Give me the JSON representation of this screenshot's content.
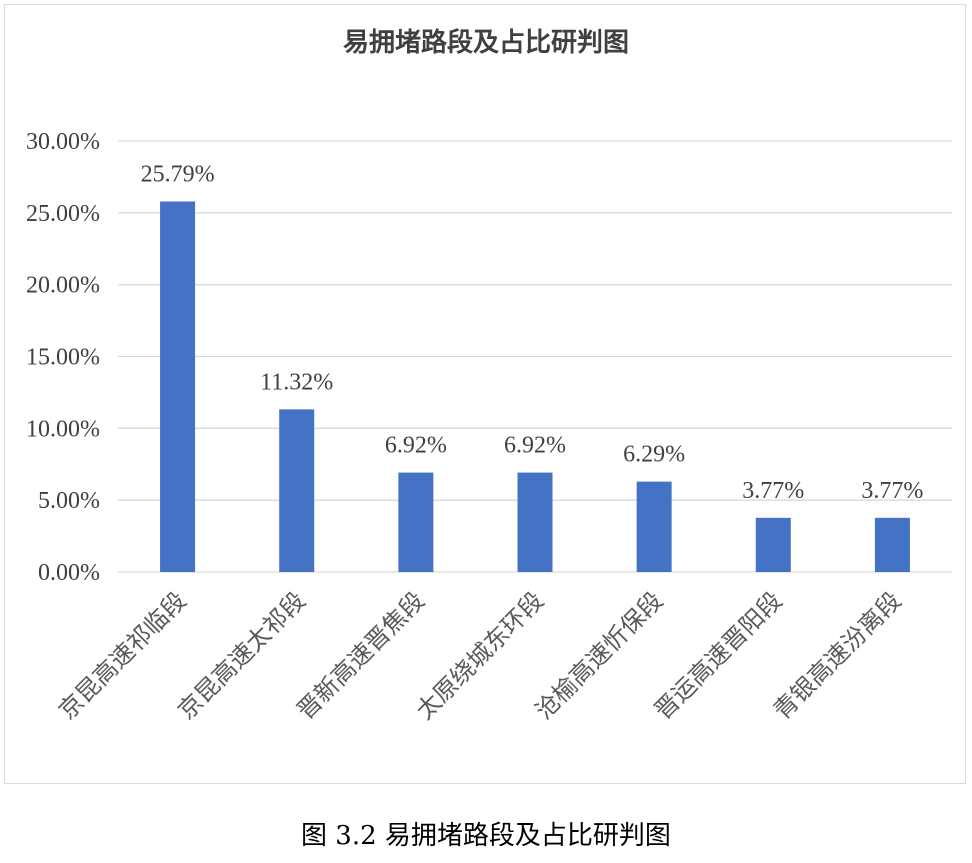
{
  "chart_data": {
    "type": "bar",
    "title": "易拥堵路段及占比研判图",
    "categories": [
      "京昆高速祁临段",
      "京昆高速太祁段",
      "晋新高速晋焦段",
      "太原绕城东环段",
      "沧榆高速忻保段",
      "晋运高速晋阳段",
      "青银高速汾离段"
    ],
    "values": [
      25.79,
      11.32,
      6.92,
      6.92,
      6.29,
      3.77,
      3.77
    ],
    "data_labels": [
      "25.79%",
      "11.32%",
      "6.92%",
      "6.92%",
      "6.29%",
      "3.77%",
      "3.77%"
    ],
    "y_ticks": [
      0,
      5,
      10,
      15,
      20,
      25,
      30
    ],
    "y_tick_labels": [
      "0.00%",
      "5.00%",
      "10.00%",
      "15.00%",
      "20.00%",
      "25.00%",
      "30.00%"
    ],
    "ylim": [
      0,
      30
    ],
    "grid": true,
    "bar_color": "#4472C4",
    "grid_color": "#d9d9d9"
  },
  "caption": "图  3.2 易拥堵路段及占比研判图"
}
